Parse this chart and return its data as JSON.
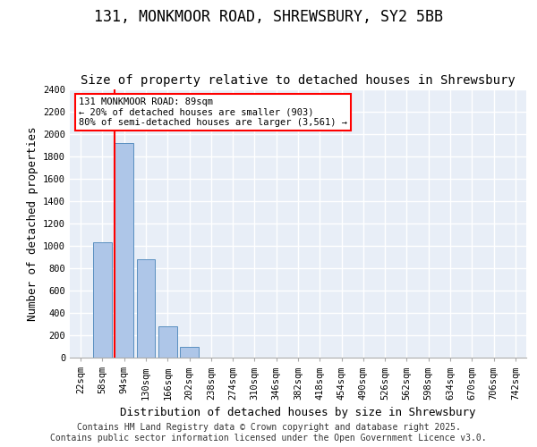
{
  "title": "131, MONKMOOR ROAD, SHREWSBURY, SY2 5BB",
  "subtitle": "Size of property relative to detached houses in Shrewsbury",
  "xlabel": "Distribution of detached houses by size in Shrewsbury",
  "ylabel": "Number of detached properties",
  "bins": [
    "22sqm",
    "58sqm",
    "94sqm",
    "130sqm",
    "166sqm",
    "202sqm",
    "238sqm",
    "274sqm",
    "310sqm",
    "346sqm",
    "382sqm",
    "418sqm",
    "454sqm",
    "490sqm",
    "526sqm",
    "562sqm",
    "598sqm",
    "634sqm",
    "670sqm",
    "706sqm",
    "742sqm"
  ],
  "bar_values": [
    0,
    1030,
    1920,
    880,
    280,
    100,
    0,
    0,
    0,
    0,
    0,
    0,
    0,
    0,
    0,
    0,
    0,
    0,
    0,
    0,
    0
  ],
  "bar_color": "#aec6e8",
  "bar_edge_color": "#5a8fc0",
  "vline_x_index": 2,
  "vline_color": "red",
  "ylim": [
    0,
    2400
  ],
  "yticks": [
    0,
    200,
    400,
    600,
    800,
    1000,
    1200,
    1400,
    1600,
    1800,
    2000,
    2200,
    2400
  ],
  "annotation_text": "131 MONKMOOR ROAD: 89sqm\n← 20% of detached houses are smaller (903)\n80% of semi-detached houses are larger (3,561) →",
  "annotation_box_color": "red",
  "footer_line1": "Contains HM Land Registry data © Crown copyright and database right 2025.",
  "footer_line2": "Contains public sector information licensed under the Open Government Licence v3.0.",
  "bg_color": "#e8eef7",
  "grid_color": "#ffffff",
  "title_fontsize": 12,
  "subtitle_fontsize": 10,
  "axis_label_fontsize": 9,
  "tick_fontsize": 7.5,
  "footer_fontsize": 7
}
